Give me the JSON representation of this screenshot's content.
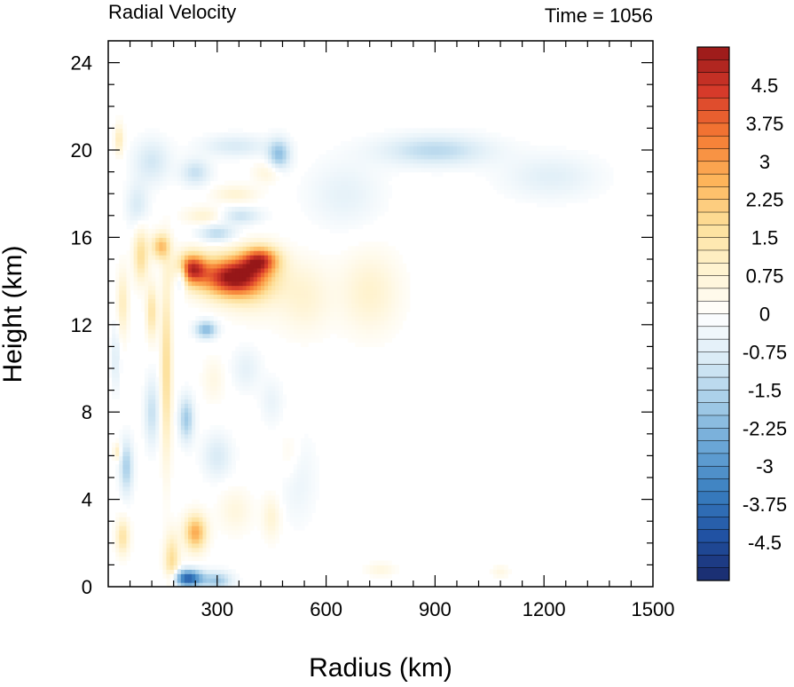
{
  "chart_data": {
    "type": "heatmap",
    "title": "Radial Velocity",
    "subtitle": "Time = 1056",
    "xlabel": "Radius (km)",
    "ylabel": "Height (km)",
    "xlim": [
      0,
      1500
    ],
    "ylim": [
      0,
      25
    ],
    "x_ticks": [
      300,
      600,
      900,
      1200,
      1500
    ],
    "x_tick_labels": [
      "300",
      "600",
      "900",
      "1200",
      "1500"
    ],
    "y_ticks": [
      0,
      4,
      8,
      12,
      16,
      20,
      24
    ],
    "y_tick_labels": [
      "0",
      "4",
      "8",
      "12",
      "16",
      "20",
      "24"
    ],
    "colorbar": {
      "min": -5.25,
      "max": 5.25,
      "step": 0.25,
      "labels": [
        "4.5",
        "3.75",
        "3",
        "2.25",
        "1.5",
        "0.75",
        "0",
        "-0.75",
        "-1.5",
        "-2.25",
        "-3",
        "-3.75",
        "-4.5"
      ],
      "label_values": [
        4.5,
        3.75,
        3,
        2.25,
        1.5,
        0.75,
        0,
        -0.75,
        -1.5,
        -2.25,
        -3,
        -3.75,
        -4.5
      ],
      "colors": [
        "#1a2a6c",
        "#2152a3",
        "#3a7fc0",
        "#6aa6d6",
        "#a4cde8",
        "#dbecf6",
        "#ffffff",
        "#fff3d0",
        "#fde09a",
        "#fdb45a",
        "#f57b33",
        "#d63a2a",
        "#961718"
      ]
    },
    "features": [
      {
        "r": 340,
        "z": 14.2,
        "v": 5.0,
        "sr": 90,
        "sz": 0.9
      },
      {
        "r": 230,
        "z": 14.6,
        "v": 4.0,
        "sr": 40,
        "sz": 0.7
      },
      {
        "r": 420,
        "z": 15.0,
        "v": 3.5,
        "sr": 50,
        "sz": 0.6
      },
      {
        "r": 145,
        "z": 15.6,
        "v": 2.4,
        "sr": 25,
        "sz": 0.6
      },
      {
        "r": 90,
        "z": 15.2,
        "v": 1.8,
        "sr": 20,
        "sz": 1.2
      },
      {
        "r": 400,
        "z": 14.0,
        "v": 1.0,
        "sr": 80,
        "sz": 1.5
      },
      {
        "r": 720,
        "z": 13.5,
        "v": 0.9,
        "sr": 80,
        "sz": 1.8
      },
      {
        "r": 540,
        "z": 13.3,
        "v": 0.8,
        "sr": 70,
        "sz": 1.6
      },
      {
        "r": 160,
        "z": 10.0,
        "v": 1.9,
        "sr": 14,
        "sz": 4.0
      },
      {
        "r": 120,
        "z": 12.6,
        "v": 1.6,
        "sr": 15,
        "sz": 1.2
      },
      {
        "r": 40,
        "z": 13.0,
        "v": 1.2,
        "sr": 15,
        "sz": 1.5
      },
      {
        "r": 240,
        "z": 2.5,
        "v": 2.8,
        "sr": 30,
        "sz": 0.8
      },
      {
        "r": 175,
        "z": 1.2,
        "v": 1.8,
        "sr": 20,
        "sz": 1.2
      },
      {
        "r": 40,
        "z": 2.3,
        "v": 1.6,
        "sr": 18,
        "sz": 0.8
      },
      {
        "r": 25,
        "z": 6.2,
        "v": 1.2,
        "sr": 10,
        "sz": 0.4
      },
      {
        "r": 30,
        "z": 20.5,
        "v": 1.3,
        "sr": 12,
        "sz": 0.7
      },
      {
        "r": 350,
        "z": 3.5,
        "v": 0.6,
        "sr": 45,
        "sz": 1.0
      },
      {
        "r": 450,
        "z": 3.2,
        "v": 0.8,
        "sr": 25,
        "sz": 1.0
      },
      {
        "r": 290,
        "z": 9.5,
        "v": 0.5,
        "sr": 30,
        "sz": 1.0
      },
      {
        "r": 500,
        "z": 6.0,
        "v": 0.5,
        "sr": 30,
        "sz": 1.2
      },
      {
        "r": 750,
        "z": 0.8,
        "v": 0.6,
        "sr": 40,
        "sz": 0.3
      },
      {
        "r": 1080,
        "z": 0.7,
        "v": 0.5,
        "sr": 25,
        "sz": 0.3
      },
      {
        "r": 270,
        "z": 17.0,
        "v": 0.9,
        "sr": 60,
        "sz": 0.4
      },
      {
        "r": 350,
        "z": 18.0,
        "v": 0.8,
        "sr": 60,
        "sz": 0.4
      },
      {
        "r": 440,
        "z": 19.0,
        "v": 0.7,
        "sr": 40,
        "sz": 0.5
      },
      {
        "r": 220,
        "z": 0.4,
        "v": -4.2,
        "sr": 40,
        "sz": 0.4
      },
      {
        "r": 300,
        "z": 0.3,
        "v": -1.8,
        "sr": 40,
        "sz": 0.4
      },
      {
        "r": 50,
        "z": 5.5,
        "v": -1.7,
        "sr": 18,
        "sz": 1.2
      },
      {
        "r": 120,
        "z": 8.0,
        "v": -1.2,
        "sr": 20,
        "sz": 1.5
      },
      {
        "r": 215,
        "z": 7.7,
        "v": -1.8,
        "sr": 20,
        "sz": 1.0
      },
      {
        "r": 270,
        "z": 11.8,
        "v": -2.2,
        "sr": 30,
        "sz": 0.4
      },
      {
        "r": 200,
        "z": 14.2,
        "v": -1.8,
        "sr": 15,
        "sz": 0.6
      },
      {
        "r": 300,
        "z": 16.2,
        "v": -1.4,
        "sr": 50,
        "sz": 0.4
      },
      {
        "r": 360,
        "z": 17.0,
        "v": -1.2,
        "sr": 60,
        "sz": 0.4
      },
      {
        "r": 470,
        "z": 19.8,
        "v": -2.0,
        "sr": 30,
        "sz": 0.7
      },
      {
        "r": 240,
        "z": 19.0,
        "v": -1.2,
        "sr": 40,
        "sz": 0.6
      },
      {
        "r": 120,
        "z": 19.5,
        "v": -1.0,
        "sr": 50,
        "sz": 1.0
      },
      {
        "r": 350,
        "z": 20.2,
        "v": -0.9,
        "sr": 90,
        "sz": 0.5
      },
      {
        "r": 900,
        "z": 20.0,
        "v": -1.4,
        "sr": 150,
        "sz": 0.7
      },
      {
        "r": 1220,
        "z": 18.8,
        "v": -0.7,
        "sr": 130,
        "sz": 1.0
      },
      {
        "r": 650,
        "z": 18.0,
        "v": -0.6,
        "sr": 100,
        "sz": 1.5
      },
      {
        "r": 300,
        "z": 6.0,
        "v": -0.9,
        "sr": 40,
        "sz": 1.0
      },
      {
        "r": 380,
        "z": 10.0,
        "v": -0.6,
        "sr": 40,
        "sz": 1.0
      },
      {
        "r": 520,
        "z": 5.0,
        "v": -0.5,
        "sr": 50,
        "sz": 2.0
      },
      {
        "r": 450,
        "z": 8.5,
        "v": -0.5,
        "sr": 30,
        "sz": 1.0
      },
      {
        "r": 80,
        "z": 17.5,
        "v": -0.9,
        "sr": 30,
        "sz": 1.0
      },
      {
        "r": 20,
        "z": 10.5,
        "v": -0.8,
        "sr": 12,
        "sz": 1.5
      }
    ]
  }
}
